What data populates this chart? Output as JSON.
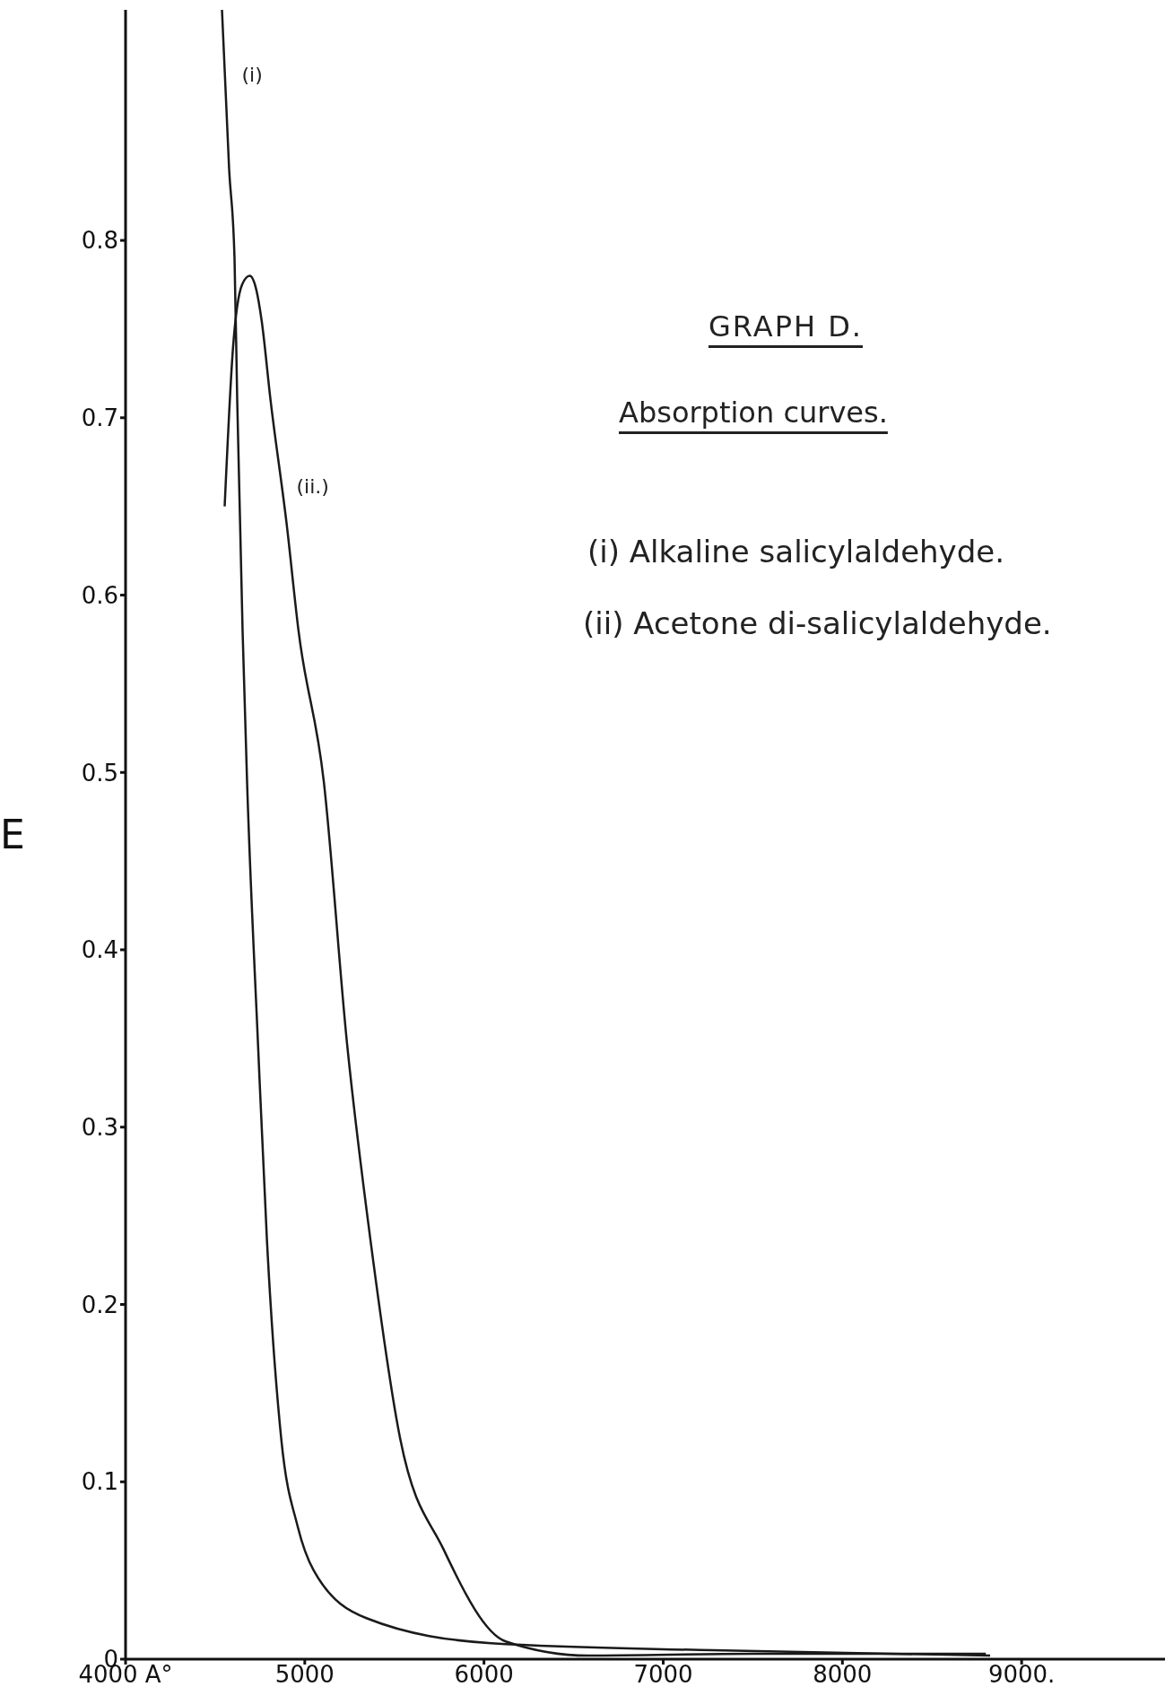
{
  "chart_data": {
    "type": "line",
    "title": "GRAPH D.",
    "subtitle": "Absorption curves.",
    "ylabel": "E",
    "annotations": [
      "(i) Alkaline salicylaldehyde.",
      "(ii) Acetone di-salicylaldehyde."
    ],
    "xlim": [
      4000,
      9800
    ],
    "ylim": [
      0,
      0.93
    ],
    "xticks": [
      {
        "value": 4000,
        "label": "4000 A°"
      },
      5000,
      6000,
      7000,
      8000,
      {
        "value": 9000,
        "label": "9000."
      }
    ],
    "yticks": [
      0,
      0.1,
      0.2,
      0.3,
      0.4,
      0.5,
      0.6,
      0.7,
      0.8
    ],
    "marker": "none",
    "line_style": "solid",
    "series": [
      {
        "name": "(i)",
        "color": "#1a1a1a",
        "x": [
          4538,
          4578,
          4608,
          4623,
          4653,
          4678,
          4739,
          4789,
          4869,
          4960,
          5050,
          5347,
          6040,
          7276,
          8824
        ],
        "values": [
          0.93,
          0.84,
          0.79,
          0.71,
          0.58,
          0.495,
          0.347,
          0.236,
          0.124,
          0.075,
          0.05,
          0.023,
          0.009,
          0.005,
          0.002
        ]
      },
      {
        "name": "(ii.)",
        "color": "#1a1a1a",
        "x": [
          4553,
          4600,
          4650,
          4693,
          4730,
          4759,
          4809,
          4899,
          4965,
          5106,
          5236,
          5367,
          5533,
          5774,
          6121,
          6583,
          7500,
          8800
        ],
        "values": [
          0.65,
          0.74,
          0.775,
          0.78,
          0.772,
          0.755,
          0.71,
          0.64,
          0.58,
          0.495,
          0.347,
          0.236,
          0.124,
          0.062,
          0.01,
          0.002,
          0.003,
          0.003
        ]
      }
    ]
  }
}
